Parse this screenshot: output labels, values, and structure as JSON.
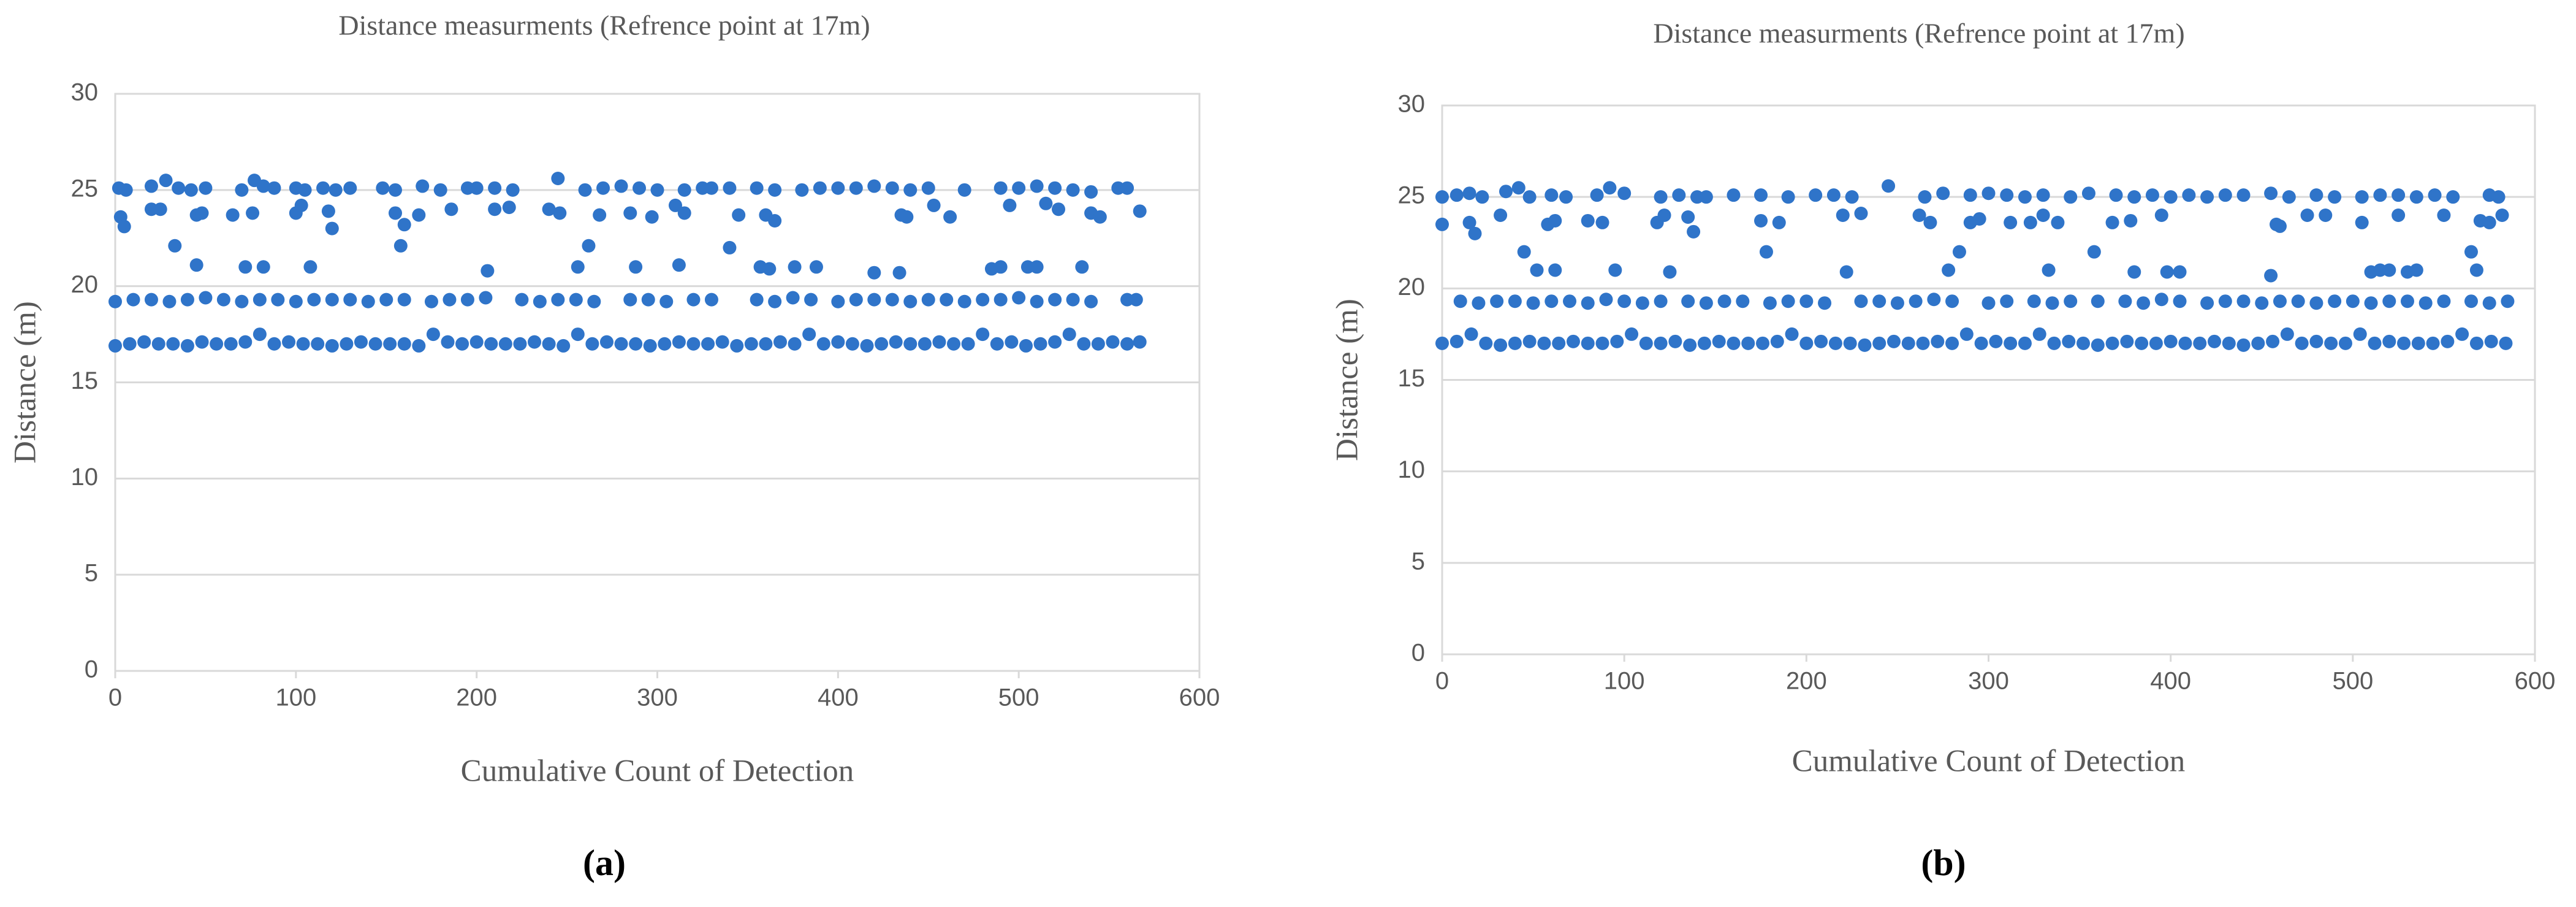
{
  "chart_data": [
    {
      "type": "scatter",
      "title": "Distance measurments (Refrence point at 17m)",
      "x_label": "Cumulative Count of Detection",
      "y_label": "Distance (m)",
      "caption": "(a)",
      "color": "#2f74c9",
      "grid": true,
      "xlim": [
        0,
        600
      ],
      "xticks": [
        0,
        100,
        200,
        300,
        400,
        500,
        600
      ],
      "ylim": [
        0,
        30
      ],
      "yticks": [
        0,
        5,
        10,
        15,
        20,
        25,
        30
      ],
      "x": [
        0,
        8,
        16,
        24,
        32,
        40,
        48,
        56,
        64,
        72,
        80,
        88,
        96,
        104,
        112,
        120,
        128,
        136,
        144,
        152,
        160,
        168,
        176,
        184,
        192,
        200,
        208,
        216,
        224,
        232,
        240,
        248,
        256,
        264,
        272,
        280,
        288,
        296,
        304,
        312,
        320,
        328,
        336,
        344,
        352,
        360,
        368,
        376,
        384,
        392,
        400,
        408,
        416,
        424,
        432,
        440,
        448,
        456,
        464,
        472,
        480,
        488,
        496,
        504,
        512,
        520,
        528,
        536,
        544,
        552,
        560,
        567,
        0,
        10,
        20,
        30,
        40,
        50,
        60,
        70,
        80,
        90,
        100,
        110,
        120,
        130,
        140,
        150,
        160,
        175,
        185,
        195,
        205,
        225,
        235,
        245,
        255,
        265,
        285,
        295,
        305,
        320,
        330,
        355,
        365,
        375,
        385,
        400,
        410,
        420,
        430,
        440,
        450,
        460,
        470,
        480,
        490,
        500,
        510,
        520,
        530,
        540,
        560,
        565,
        2,
        6,
        20,
        28,
        35,
        42,
        50,
        70,
        77,
        82,
        88,
        100,
        105,
        115,
        122,
        130,
        148,
        155,
        170,
        180,
        195,
        200,
        210,
        220,
        245,
        260,
        270,
        280,
        290,
        300,
        315,
        325,
        330,
        340,
        355,
        365,
        380,
        390,
        400,
        410,
        420,
        430,
        440,
        450,
        470,
        490,
        500,
        510,
        520,
        530,
        540,
        555,
        560,
        3,
        5,
        20,
        25,
        33,
        45,
        45,
        48,
        65,
        72,
        76,
        82,
        100,
        103,
        108,
        118,
        120,
        155,
        158,
        160,
        168,
        186,
        206,
        210,
        218,
        240,
        246,
        256,
        262,
        268,
        285,
        288,
        297,
        310,
        312,
        315,
        340,
        345,
        357,
        360,
        362,
        365,
        376,
        388,
        420,
        434,
        435,
        438,
        453,
        462,
        485,
        490,
        495,
        505,
        510,
        515,
        522,
        535,
        540,
        545,
        567
      ],
      "values": [
        16.9,
        17,
        17.1,
        17,
        17,
        16.9,
        17.1,
        17,
        17,
        17.1,
        17.5,
        17,
        17.1,
        17,
        17,
        16.9,
        17,
        17.1,
        17,
        17,
        17,
        16.9,
        17.5,
        17.1,
        17,
        17.1,
        17,
        17,
        17,
        17.1,
        17,
        16.9,
        17.5,
        17,
        17.1,
        17,
        17,
        16.9,
        17,
        17.1,
        17,
        17,
        17.1,
        16.9,
        17,
        17,
        17.1,
        17,
        17.5,
        17,
        17.1,
        17,
        16.9,
        17,
        17.1,
        17,
        17,
        17.1,
        17,
        17,
        17.5,
        17,
        17.1,
        16.9,
        17,
        17.1,
        17.5,
        17,
        17,
        17.1,
        17,
        17.1,
        19.2,
        19.3,
        19.3,
        19.2,
        19.3,
        19.4,
        19.3,
        19.2,
        19.3,
        19.3,
        19.2,
        19.3,
        19.3,
        19.3,
        19.2,
        19.3,
        19.3,
        19.2,
        19.3,
        19.3,
        19.4,
        19.3,
        19.2,
        19.3,
        19.3,
        19.2,
        19.3,
        19.3,
        19.2,
        19.3,
        19.3,
        19.3,
        19.2,
        19.4,
        19.3,
        19.2,
        19.3,
        19.3,
        19.3,
        19.2,
        19.3,
        19.3,
        19.2,
        19.3,
        19.3,
        19.4,
        19.2,
        19.3,
        19.3,
        19.2,
        19.3,
        19.3,
        25.1,
        25,
        25.2,
        25.5,
        25.1,
        25,
        25.1,
        25,
        25.5,
        25.2,
        25.1,
        25.1,
        25,
        25.1,
        25,
        25.1,
        25.1,
        25,
        25.2,
        25,
        25.1,
        25.1,
        25.1,
        25,
        25.6,
        25,
        25.1,
        25.2,
        25.1,
        25,
        25,
        25.1,
        25.1,
        25.1,
        25.1,
        25,
        25,
        25.1,
        25.1,
        25.1,
        25.2,
        25.1,
        25,
        25.1,
        25,
        25.1,
        25.1,
        25.2,
        25.1,
        25,
        24.9,
        25.1,
        25.1,
        23.6,
        23.1,
        24,
        24,
        22.1,
        23.7,
        21.1,
        23.8,
        23.7,
        21,
        23.8,
        21,
        23.8,
        24.2,
        21,
        23.9,
        23,
        23.8,
        22.1,
        23.2,
        23.7,
        24,
        20.8,
        24,
        24.1,
        24,
        23.8,
        21,
        22.1,
        23.7,
        23.8,
        21,
        23.6,
        24.2,
        21.1,
        23.8,
        22,
        23.7,
        21,
        23.7,
        20.9,
        23.4,
        21,
        21,
        20.7,
        20.7,
        23.7,
        23.6,
        24.2,
        23.6,
        20.9,
        21,
        24.2,
        21,
        21,
        24.3,
        24,
        21,
        23.8,
        23.6,
        23.9
      ]
    },
    {
      "type": "scatter",
      "title": "Distance measurments (Refrence point at 17m)",
      "x_label": "Cumulative Count of Detection",
      "y_label": "Distance (m)",
      "caption": "(b)",
      "color": "#2f74c9",
      "grid": true,
      "xlim": [
        0,
        600
      ],
      "xticks": [
        0,
        100,
        200,
        300,
        400,
        500,
        600
      ],
      "ylim": [
        0,
        30
      ],
      "yticks": [
        0,
        5,
        10,
        15,
        20,
        25,
        30
      ],
      "x": [
        0,
        8,
        16,
        24,
        32,
        40,
        48,
        56,
        64,
        72,
        80,
        88,
        96,
        104,
        112,
        120,
        128,
        136,
        144,
        152,
        160,
        168,
        176,
        184,
        192,
        200,
        208,
        216,
        224,
        232,
        240,
        248,
        256,
        264,
        272,
        280,
        288,
        296,
        304,
        312,
        320,
        328,
        336,
        344,
        352,
        360,
        368,
        376,
        384,
        392,
        400,
        408,
        416,
        424,
        432,
        440,
        448,
        456,
        464,
        472,
        480,
        488,
        496,
        504,
        512,
        520,
        528,
        536,
        544,
        552,
        560,
        568,
        576,
        584,
        10,
        20,
        30,
        40,
        50,
        60,
        70,
        80,
        90,
        100,
        110,
        120,
        135,
        145,
        155,
        165,
        180,
        190,
        200,
        210,
        230,
        240,
        250,
        260,
        270,
        280,
        300,
        310,
        325,
        335,
        345,
        360,
        375,
        385,
        395,
        405,
        420,
        430,
        440,
        450,
        460,
        470,
        480,
        490,
        500,
        510,
        520,
        530,
        540,
        550,
        565,
        575,
        585,
        0,
        8,
        15,
        22,
        35,
        42,
        48,
        60,
        68,
        85,
        92,
        100,
        120,
        130,
        140,
        145,
        160,
        175,
        190,
        205,
        215,
        225,
        245,
        265,
        275,
        290,
        300,
        310,
        320,
        330,
        345,
        355,
        370,
        380,
        390,
        400,
        410,
        420,
        430,
        440,
        455,
        465,
        480,
        490,
        505,
        515,
        525,
        535,
        545,
        555,
        575,
        580,
        0,
        15,
        18,
        32,
        45,
        52,
        58,
        62,
        62,
        80,
        88,
        95,
        118,
        122,
        125,
        135,
        138,
        175,
        178,
        185,
        220,
        222,
        230,
        262,
        268,
        278,
        284,
        290,
        295,
        312,
        323,
        330,
        333,
        338,
        358,
        368,
        378,
        380,
        395,
        398,
        405,
        455,
        458,
        460,
        475,
        485,
        505,
        510,
        515,
        520,
        525,
        530,
        535,
        550,
        565,
        568,
        570,
        575,
        582
      ],
      "values": [
        17,
        17.1,
        17.5,
        17,
        16.9,
        17,
        17.1,
        17,
        17,
        17.1,
        17,
        17,
        17.1,
        17.5,
        17,
        17,
        17.1,
        16.9,
        17,
        17.1,
        17,
        17,
        17,
        17.1,
        17.5,
        17,
        17.1,
        17,
        17,
        16.9,
        17,
        17.1,
        17,
        17,
        17.1,
        17,
        17.5,
        17,
        17.1,
        17,
        17,
        17.5,
        17,
        17.1,
        17,
        16.9,
        17,
        17.1,
        17,
        17,
        17.1,
        17,
        17,
        17.1,
        17,
        16.9,
        17,
        17.1,
        17.5,
        17,
        17.1,
        17,
        17,
        17.5,
        17,
        17.1,
        17,
        17,
        17,
        17.1,
        17.5,
        17,
        17.1,
        17,
        19.3,
        19.2,
        19.3,
        19.3,
        19.2,
        19.3,
        19.3,
        19.2,
        19.4,
        19.3,
        19.2,
        19.3,
        19.3,
        19.2,
        19.3,
        19.3,
        19.2,
        19.3,
        19.3,
        19.2,
        19.3,
        19.3,
        19.2,
        19.3,
        19.4,
        19.3,
        19.2,
        19.3,
        19.3,
        19.2,
        19.3,
        19.3,
        19.3,
        19.2,
        19.4,
        19.3,
        19.2,
        19.3,
        19.3,
        19.2,
        19.3,
        19.3,
        19.2,
        19.3,
        19.3,
        19.2,
        19.3,
        19.3,
        19.2,
        19.3,
        19.3,
        19.2,
        19.3,
        25,
        25.1,
        25.2,
        25,
        25.3,
        25.5,
        25,
        25.1,
        25,
        25.1,
        25.5,
        25.2,
        25,
        25.1,
        25,
        25,
        25.1,
        25.1,
        25,
        25.1,
        25.1,
        25,
        25.6,
        25,
        25.2,
        25.1,
        25.2,
        25.1,
        25,
        25.1,
        25,
        25.2,
        25.1,
        25,
        25.1,
        25,
        25.1,
        25,
        25.1,
        25.1,
        25.2,
        25,
        25.1,
        25,
        25,
        25.1,
        25.1,
        25,
        25.1,
        25,
        25.1,
        25,
        23.5,
        23.6,
        23,
        24,
        22,
        21,
        23.5,
        23.7,
        21,
        23.7,
        23.6,
        21,
        23.6,
        24,
        20.9,
        23.9,
        23.1,
        23.7,
        22,
        23.6,
        24,
        20.9,
        24.1,
        24,
        23.6,
        21,
        22,
        23.6,
        23.8,
        23.6,
        23.6,
        24,
        21,
        23.6,
        22,
        23.6,
        23.7,
        20.9,
        24,
        20.9,
        20.9,
        20.7,
        23.5,
        23.4,
        24,
        24,
        23.6,
        20.9,
        21,
        21,
        24,
        20.9,
        21,
        24,
        22,
        21,
        23.7,
        23.6,
        24
      ]
    }
  ]
}
